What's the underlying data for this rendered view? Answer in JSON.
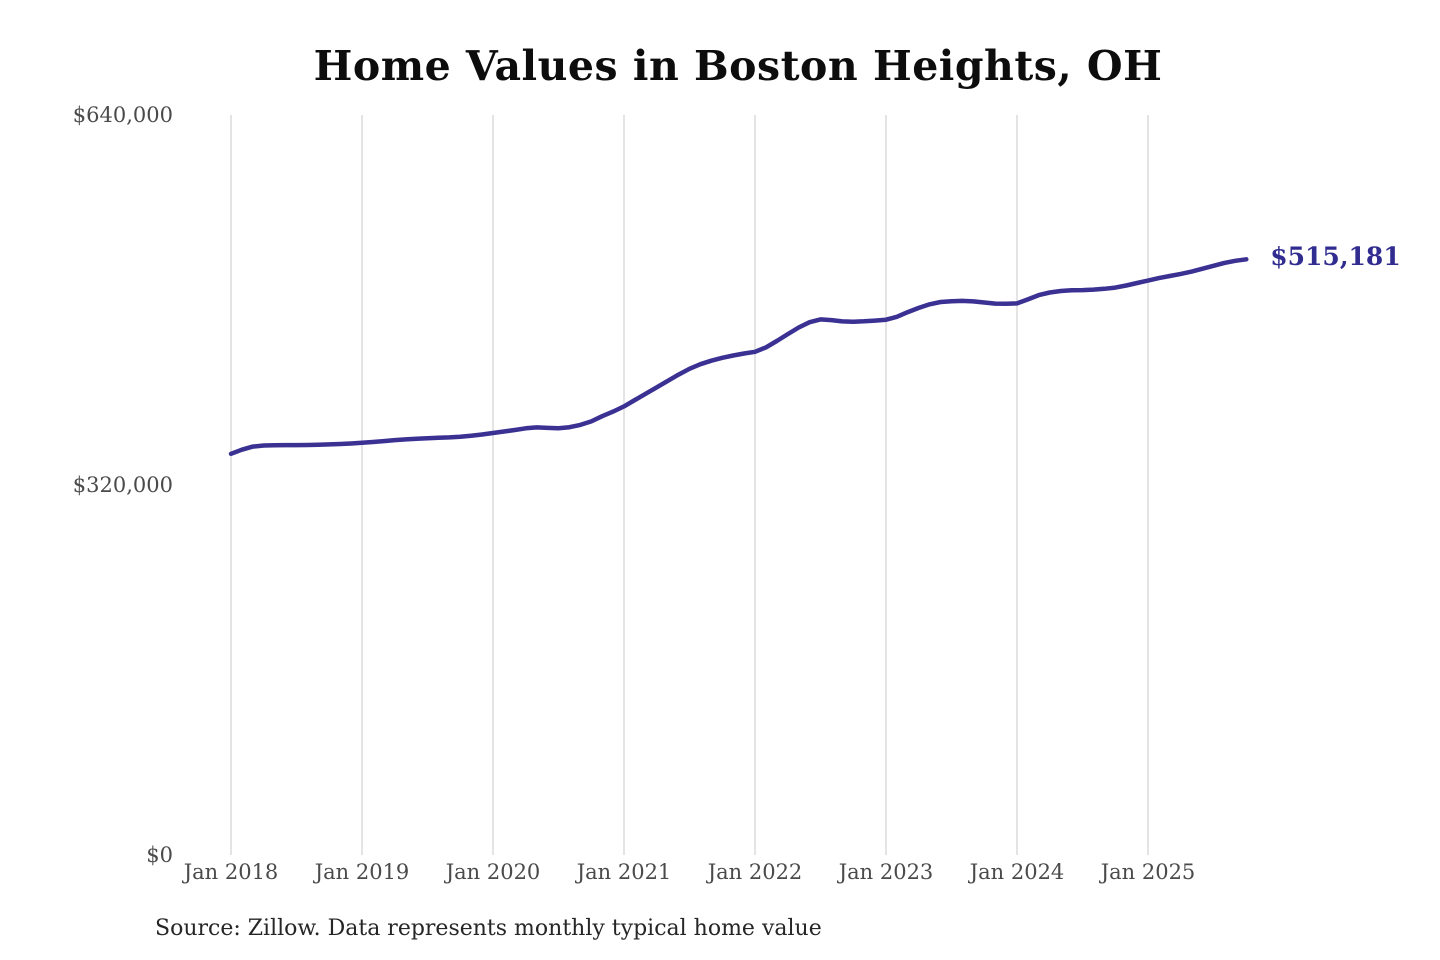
{
  "chart": {
    "title": "Home Values in Boston Heights, OH",
    "end_label": "$515,181",
    "source_note": "Source: Zillow. Data represents monthly typical home value"
  },
  "colors": {
    "line": "#3a3193",
    "end_label_text": "#312c90",
    "gridline": "#c9c9c9",
    "tick_text": "#4a4a4a",
    "title_text": "#0d0d0d",
    "source_text": "#262626",
    "background": "#ffffff"
  },
  "chart_data": {
    "type": "line",
    "title": "Home Values in Boston Heights, OH",
    "xlabel": "",
    "ylabel": "",
    "ylim": [
      0,
      640000
    ],
    "y_ticks": [
      0,
      320000,
      640000
    ],
    "y_tick_labels": [
      "$0",
      "$320,000",
      "$640,000"
    ],
    "x_tick_labels": [
      "Jan 2018",
      "Jan 2019",
      "Jan 2020",
      "Jan 2021",
      "Jan 2022",
      "Jan 2023",
      "Jan 2024",
      "Jan 2025"
    ],
    "grid": "vertical-only",
    "legend": "none",
    "annotation_last_value": "$515,181",
    "series": [
      {
        "name": "Typical home value",
        "frequency": "monthly",
        "start": "Jan 2018",
        "end": "Oct 2025",
        "values": [
          347000,
          350500,
          353200,
          354200,
          354400,
          354500,
          354500,
          354600,
          354800,
          355100,
          355500,
          355900,
          356500,
          357200,
          358000,
          358800,
          359400,
          360000,
          360400,
          360800,
          361200,
          361800,
          362600,
          363700,
          365000,
          366300,
          367600,
          369000,
          369800,
          369400,
          369000,
          370000,
          372000,
          375000,
          379500,
          383500,
          388000,
          393500,
          399000,
          404500,
          410000,
          415500,
          420500,
          424500,
          427500,
          430000,
          432000,
          433700,
          435200,
          439000,
          444500,
          450500,
          456200,
          460800,
          463200,
          462600,
          461500,
          461200,
          461600,
          462200,
          463000,
          465500,
          469500,
          473200,
          476300,
          478300,
          478900,
          479200,
          478800,
          477800,
          476900,
          476700,
          477100,
          480500,
          484200,
          486500,
          487800,
          488400,
          488600,
          489000,
          489700,
          490700,
          492500,
          494700,
          496800,
          498900,
          500800,
          502600,
          504600,
          507100,
          509600,
          512100,
          513900,
          515181
        ]
      }
    ]
  }
}
